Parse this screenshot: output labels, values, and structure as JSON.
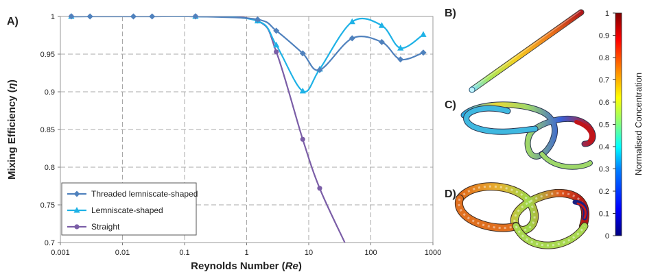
{
  "panels": {
    "a": "A)",
    "b": "B)",
    "c": "C)",
    "d": "D)"
  },
  "chart_data": {
    "type": "line",
    "xlabel_prefix": "Reynolds Number (",
    "xlabel_var": "Re",
    "xlabel_suffix": ")",
    "ylabel_prefix": "Mixing Efficiency (",
    "ylabel_var": "η",
    "ylabel_suffix": ")",
    "xscale": "log",
    "xlim": [
      0.001,
      1000
    ],
    "ylim": [
      0.7,
      1.0
    ],
    "grid": true,
    "legend_position": "bottom-left",
    "x_ticks": [
      0.001,
      0.01,
      0.1,
      1,
      10,
      100,
      1000
    ],
    "x_tick_labels": [
      "0.001",
      "0.01",
      "0.1",
      "1",
      "10",
      "100",
      "1000"
    ],
    "y_ticks": [
      0.7,
      0.75,
      0.8,
      0.85,
      0.9,
      0.95,
      1.0
    ],
    "y_tick_labels": [
      "0.7",
      "0.75",
      "0.8",
      "0.85",
      "0.9",
      "0.95",
      "1"
    ],
    "series": [
      {
        "name": "Threaded lemniscate-shaped",
        "color": "#4f81bd",
        "marker": "diamond",
        "x": [
          0.0015,
          0.003,
          0.015,
          0.03,
          0.15,
          1.5,
          3,
          8,
          15,
          50,
          150,
          300,
          700
        ],
        "y": [
          1.0,
          1.0,
          1.0,
          1.0,
          1.0,
          0.996,
          0.981,
          0.951,
          0.929,
          0.971,
          0.966,
          0.943,
          0.952
        ]
      },
      {
        "name": "Lemniscate-shaped",
        "color": "#1fb2e6",
        "marker": "triangle",
        "x": [
          0.0015,
          0.15,
          1.5,
          3,
          8,
          15,
          50,
          150,
          300,
          700
        ],
        "y": [
          1.0,
          1.0,
          0.994,
          0.962,
          0.901,
          0.93,
          0.993,
          0.988,
          0.958,
          0.976
        ]
      },
      {
        "name": "Straight",
        "color": "#7b5ea7",
        "marker": "circle",
        "x": [
          0.0015,
          0.15,
          1.5,
          3,
          8,
          15,
          38
        ],
        "y": [
          1.0,
          1.0,
          0.994,
          0.953,
          0.837,
          0.772,
          0.7
        ]
      }
    ]
  },
  "colorbar": {
    "label": "Normalised Concentration",
    "ticks": [
      0,
      0.1,
      0.2,
      0.3,
      0.4,
      0.5,
      0.6,
      0.7,
      0.8,
      0.9,
      1
    ],
    "tick_labels": [
      "0",
      "0.1",
      "0.2",
      "0.3",
      "0.4",
      "0.5",
      "0.6",
      "0.7",
      "0.8",
      "0.9",
      "1"
    ],
    "colormap": [
      "#00007f",
      "#0000ff",
      "#0080ff",
      "#00ffff",
      "#80ff80",
      "#ffff00",
      "#ff8000",
      "#ff0000",
      "#7f0000"
    ]
  }
}
